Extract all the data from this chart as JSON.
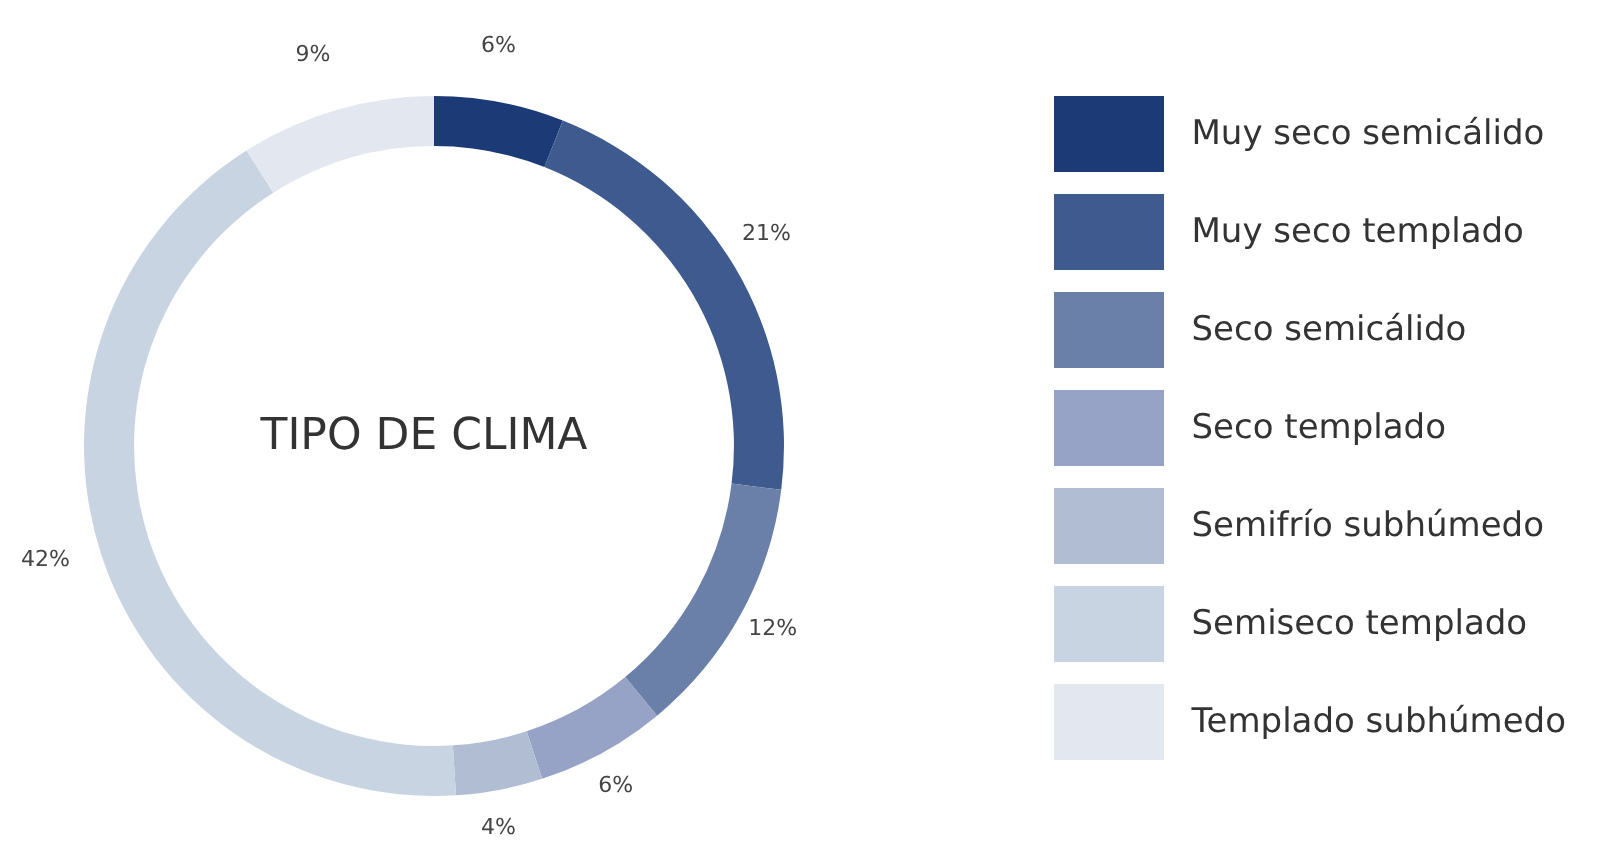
{
  "chart_data": {
    "type": "donut",
    "title": "TIPO DE CLIMA",
    "categories": [
      "Muy seco semicálido",
      "Muy seco templado",
      "Seco semicálido",
      "Seco templado",
      "Semifrío subhúmedo",
      "Semiseco templado",
      "Templado subhúmedo"
    ],
    "values": [
      6,
      21,
      12,
      6,
      4,
      42,
      9
    ],
    "value_labels": [
      "6%",
      "21%",
      "12%",
      "6%",
      "4%",
      "42%",
      "9%"
    ],
    "colors": [
      "#1c3a75",
      "#3f5a8f",
      "#6a80a8",
      "#97a3c6",
      "#b0bdd2",
      "#c8d4e2",
      "#e3e8f0"
    ],
    "legend": "right"
  }
}
